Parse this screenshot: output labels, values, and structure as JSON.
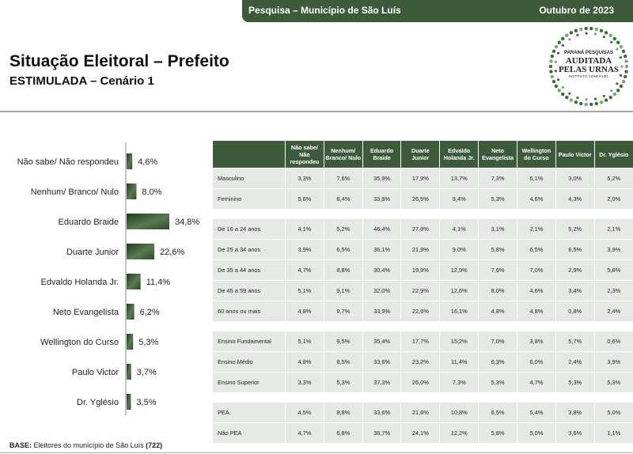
{
  "header": {
    "left": "Pesquisa – Município de São Luís",
    "right": "Outubro de 2023"
  },
  "title": "Situação Eleitoral – Prefeito",
  "subtitle": "ESTIMULADA – Cenário 1",
  "seal": {
    "line1": "PARANÁ PESQUISAS",
    "line2": "AUDITADA",
    "line3": "PELAS URNAS",
    "line4": "INSTITUTO CONFIÁVEL"
  },
  "colors": {
    "accent": "#3d5a3b",
    "row_bg": "#e4e9e3"
  },
  "chart_data": {
    "type": "bar",
    "orientation": "horizontal",
    "categories": [
      "Não sabe/ Não respondeu",
      "Nenhum/ Branco/ Nulo",
      "Eduardo Braide",
      "Duarte Junior",
      "Edvaldo Holanda Jr.",
      "Neto Evangelista",
      "Wellington do Curso",
      "Paulo Victor",
      "Dr. Yglésio"
    ],
    "values": [
      4.6,
      8.0,
      34.8,
      22.6,
      11.4,
      6.2,
      5.3,
      3.7,
      3.5
    ],
    "labels": [
      "4,6%",
      "8,0%",
      "34,8%",
      "22,6%",
      "11,4%",
      "6,2%",
      "5,3%",
      "3,7%",
      "3,5%"
    ]
  },
  "table": {
    "columns": [
      "Não sabe/ Não respondeu",
      "Nenhum/ Branco/ Nulo",
      "Eduardo Braide",
      "Duarte Junior",
      "Edvaldo Holanda Jr.",
      "Neto Evangelista",
      "Wellington do Curso",
      "Paulo Victor",
      "Dr. Yglésio"
    ],
    "groups": [
      {
        "rows": [
          {
            "label": "Masculino",
            "values": [
              "3,3%",
              "7,6%",
              "35,9%",
              "17,9%",
              "13,7%",
              "7,3%",
              "6,1%",
              "3,0%",
              "5,2%"
            ]
          },
          {
            "label": "Feminino",
            "values": [
              "5,6%",
              "8,4%",
              "33,8%",
              "26,5%",
              "9,4%",
              "5,3%",
              "4,6%",
              "4,3%",
              "2,0%"
            ]
          }
        ]
      },
      {
        "rows": [
          {
            "label": "De 16 a 24 anos",
            "values": [
              "4,1%",
              "5,2%",
              "46,4%",
              "27,8%",
              "4,1%",
              "3,1%",
              "2,1%",
              "5,2%",
              "2,1%"
            ]
          },
          {
            "label": "De 25 a 34 anos",
            "values": [
              "3,9%",
              "6,5%",
              "36,1%",
              "21,9%",
              "9,0%",
              "5,8%",
              "6,5%",
              "6,5%",
              "3,9%"
            ]
          },
          {
            "label": "De 35 a 44 anos",
            "values": [
              "4,7%",
              "8,8%",
              "30,4%",
              "19,9%",
              "12,9%",
              "7,6%",
              "7,0%",
              "2,9%",
              "5,8%"
            ]
          },
          {
            "label": "De 45 a 59 anos",
            "values": [
              "5,1%",
              "9,1%",
              "32,0%",
              "22,9%",
              "12,6%",
              "8,0%",
              "4,6%",
              "3,4%",
              "2,3%"
            ]
          },
          {
            "label": "60 anos ou mais",
            "values": [
              "4,8%",
              "9,7%",
              "33,9%",
              "22,6%",
              "16,1%",
              "4,8%",
              "4,8%",
              "0,8%",
              "2,4%"
            ]
          }
        ]
      },
      {
        "rows": [
          {
            "label": "Ensino Fundamental",
            "values": [
              "5,1%",
              "9,5%",
              "35,4%",
              "17,7%",
              "15,2%",
              "7,0%",
              "3,8%",
              "5,7%",
              "0,6%"
            ]
          },
          {
            "label": "Ensino Médio",
            "values": [
              "4,8%",
              "8,5%",
              "33,6%",
              "23,2%",
              "11,4%",
              "6,3%",
              "6,0%",
              "2,4%",
              "3,9%"
            ]
          },
          {
            "label": "Ensino Superior",
            "values": [
              "3,3%",
              "5,3%",
              "37,3%",
              "26,0%",
              "7,3%",
              "5,3%",
              "4,7%",
              "5,3%",
              "5,3%"
            ]
          }
        ]
      },
      {
        "rows": [
          {
            "label": "PEA",
            "values": [
              "4,5%",
              "8,8%",
              "33,6%",
              "21,6%",
              "10,8%",
              "6,5%",
              "5,4%",
              "3,8%",
              "5,0%"
            ]
          },
          {
            "label": "Não PEA",
            "values": [
              "4,7%",
              "6,8%",
              "36,7%",
              "24,1%",
              "12,2%",
              "5,8%",
              "5,0%",
              "3,6%",
              "1,1%"
            ]
          }
        ]
      }
    ]
  },
  "footer": {
    "label": "BASE:",
    "text": "Eleitores do município de São Luís",
    "count": "(722)"
  }
}
